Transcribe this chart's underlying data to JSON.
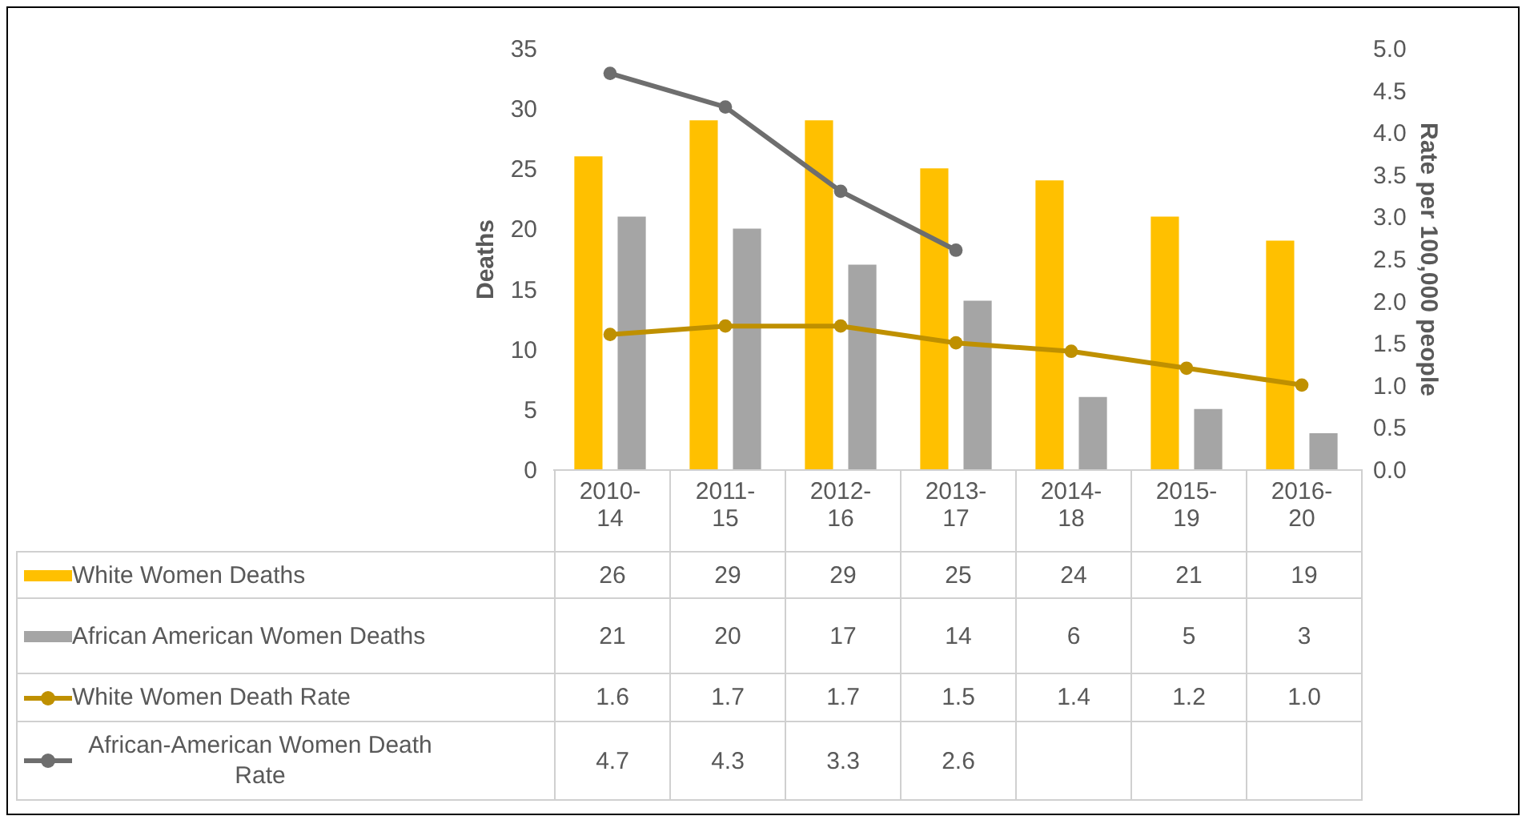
{
  "chart_data": {
    "type": "bar",
    "ylabel": "Deaths",
    "y2label": "Rate per 100,000 people",
    "categories": [
      "2010-14",
      "2011-15",
      "2012-16",
      "2013-17",
      "2014-18",
      "2015-19",
      "2016-20"
    ],
    "series": [
      {
        "name": "White Women Deaths",
        "color": "#ffc000",
        "values": [
          26,
          29,
          29,
          25,
          24,
          21,
          19
        ],
        "value_labels": [
          "26",
          "29",
          "29",
          "25",
          "24",
          "21",
          "19"
        ]
      },
      {
        "name": "African American Women Deaths",
        "color": "#a5a5a5",
        "values": [
          21,
          20,
          17,
          14,
          6,
          5,
          3
        ],
        "value_labels": [
          "21",
          "20",
          "17",
          "14",
          "6",
          "5",
          "3"
        ]
      },
      {
        "name": "White Women Death Rate",
        "type": "line",
        "axis": "y2",
        "color": "#bf9000",
        "values": [
          1.6,
          1.7,
          1.7,
          1.5,
          1.4,
          1.2,
          1.0
        ],
        "value_labels": [
          "1.6",
          "1.7",
          "1.7",
          "1.5",
          "1.4",
          "1.2",
          "1.0"
        ]
      },
      {
        "name": "African-American Women Death Rate",
        "type": "line",
        "axis": "y2",
        "color": "#6e6e6e",
        "values": [
          4.7,
          4.3,
          3.3,
          2.6,
          null,
          null,
          null
        ],
        "value_labels": [
          "4.7",
          "4.3",
          "3.3",
          "2.6",
          null,
          null,
          null
        ]
      }
    ],
    "ylim": [
      0,
      35
    ],
    "yticks": [
      0,
      5,
      10,
      15,
      20,
      25,
      30,
      35
    ],
    "y2lim": [
      0,
      5
    ],
    "y2ticks": [
      {
        "value": 0,
        "label": "0.0"
      },
      {
        "value": 0.5,
        "label": "0.5"
      },
      {
        "value": 1,
        "label": "1.0"
      },
      {
        "value": 1.5,
        "label": "1.5"
      },
      {
        "value": 2,
        "label": "2.0"
      },
      {
        "value": 2.5,
        "label": "2.5"
      },
      {
        "value": 3,
        "label": "3.0"
      },
      {
        "value": 3.5,
        "label": "3.5"
      },
      {
        "value": 4,
        "label": "4.0"
      },
      {
        "value": 4.5,
        "label": "4.5"
      },
      {
        "value": 5,
        "label": "5.0"
      }
    ],
    "marker": "circle",
    "legend": "bottom",
    "grid": false
  }
}
